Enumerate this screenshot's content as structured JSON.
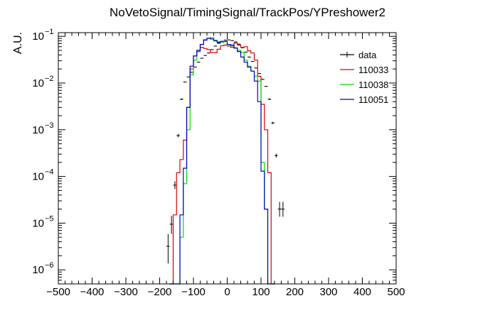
{
  "chart_data": {
    "type": "line",
    "title": "NoVetoSignal/TimingSignal/TrackPos/YPreshower2",
    "xlabel": "",
    "ylabel": "A.U.",
    "xlim": [
      -500,
      500
    ],
    "ylim": [
      5e-07,
      0.12
    ],
    "log_y": true,
    "grid": false,
    "legend_placement": "top-right",
    "x_ticks": [
      -500,
      -400,
      -300,
      -200,
      -100,
      0,
      100,
      200,
      300,
      400,
      500
    ],
    "x_tick_labels": [
      "−500",
      "−400",
      "−300",
      "−200",
      "−100",
      "0",
      "100",
      "200",
      "300",
      "400",
      "500"
    ],
    "y_ticks": [
      1e-06,
      1e-05,
      0.0001,
      0.001,
      0.01,
      0.1
    ],
    "y_tick_bases": [
      "10",
      "10",
      "10",
      "10",
      "10",
      "10"
    ],
    "y_tick_exps": [
      "−6",
      "−5",
      "−4",
      "−3",
      "−2",
      "−1"
    ],
    "bin_edges": [
      -170,
      -160,
      -150,
      -140,
      -130,
      -120,
      -110,
      -100,
      -90,
      -80,
      -70,
      -60,
      -50,
      -40,
      -30,
      -20,
      -10,
      0,
      10,
      20,
      30,
      40,
      50,
      60,
      70,
      80,
      90,
      100,
      110,
      120,
      130,
      140
    ],
    "series": [
      {
        "name": "data",
        "style": "errorbar",
        "color": "#000000",
        "x": [
          -175,
          -165,
          -155,
          -145,
          -135,
          -125,
          -115,
          -105,
          -95,
          -85,
          -75,
          -65,
          -55,
          -45,
          -35,
          -25,
          -15,
          -5,
          5,
          15,
          25,
          35,
          45,
          55,
          65,
          75,
          85,
          95,
          105,
          115,
          125,
          135,
          145,
          155,
          165
        ],
        "y": [
          3.2e-06,
          9.5e-06,
          6.5e-05,
          0.00075,
          0.0045,
          0.0105,
          0.0135,
          0.017,
          0.022,
          0.028,
          0.034,
          0.039,
          0.044,
          0.052,
          0.062,
          0.071,
          0.078,
          0.083,
          0.084,
          0.081,
          0.076,
          0.068,
          0.057,
          0.046,
          0.036,
          0.029,
          0.021,
          0.016,
          0.012,
          0.0085,
          0.0045,
          0.0014,
          0.00028,
          2e-05,
          2e-05
        ],
        "yerr_low": [
          1.8e-06,
          3.5e-06,
          1e-05,
          4.5e-05,
          0.0001,
          0,
          0,
          0,
          0,
          0,
          0,
          0,
          0,
          0,
          0,
          0,
          0,
          0,
          0,
          0,
          0,
          0,
          0,
          0,
          0,
          0,
          0,
          0,
          0,
          0,
          0.0001,
          5e-05,
          2e-05,
          6e-06,
          6e-06
        ],
        "yerr_high": [
          2.5e-06,
          4.5e-06,
          1.2e-05,
          5e-05,
          0.0001,
          0,
          0,
          0,
          0,
          0,
          0,
          0,
          0,
          0,
          0,
          0,
          0,
          0,
          0,
          0,
          0,
          0,
          0,
          0,
          0,
          0,
          0,
          0,
          0,
          0,
          0.0001,
          5e-05,
          2e-05,
          8e-06,
          8e-06
        ]
      },
      {
        "name": "110033",
        "style": "step",
        "color": "#dd0000",
        "values": [
          0,
          1.5e-05,
          0.00012,
          0.00023,
          0.0006,
          0.003,
          0.02,
          0.038,
          0.047,
          0.058,
          0.055,
          0.052,
          0.045,
          0.045,
          0.053,
          0.063,
          0.065,
          0.062,
          0.058,
          0.072,
          0.065,
          0.058,
          0.06,
          0.049,
          0.044,
          0.031,
          0.014,
          0.0035,
          0.001,
          0.00012,
          4e-07
        ]
      },
      {
        "name": "110038",
        "style": "step",
        "color": "#00dd00",
        "values": [
          0,
          0,
          0,
          5e-06,
          7e-05,
          0.001,
          0.015,
          0.031,
          0.048,
          0.067,
          0.085,
          0.09,
          0.094,
          0.083,
          0.077,
          0.074,
          0.077,
          0.063,
          0.062,
          0.057,
          0.05,
          0.045,
          0.031,
          0.023,
          0.018,
          0.014,
          0.011,
          0.0002,
          2e-05,
          0,
          0
        ]
      },
      {
        "name": "110051",
        "style": "step",
        "color": "#0000cc",
        "values": [
          0,
          0,
          0,
          1.5e-05,
          0.00015,
          0.003,
          0.023,
          0.038,
          0.05,
          0.067,
          0.083,
          0.091,
          0.088,
          0.08,
          0.074,
          0.078,
          0.078,
          0.067,
          0.065,
          0.056,
          0.047,
          0.036,
          0.028,
          0.022,
          0.018,
          0.011,
          0.004,
          0.00013,
          2e-05,
          0,
          0
        ]
      }
    ]
  }
}
